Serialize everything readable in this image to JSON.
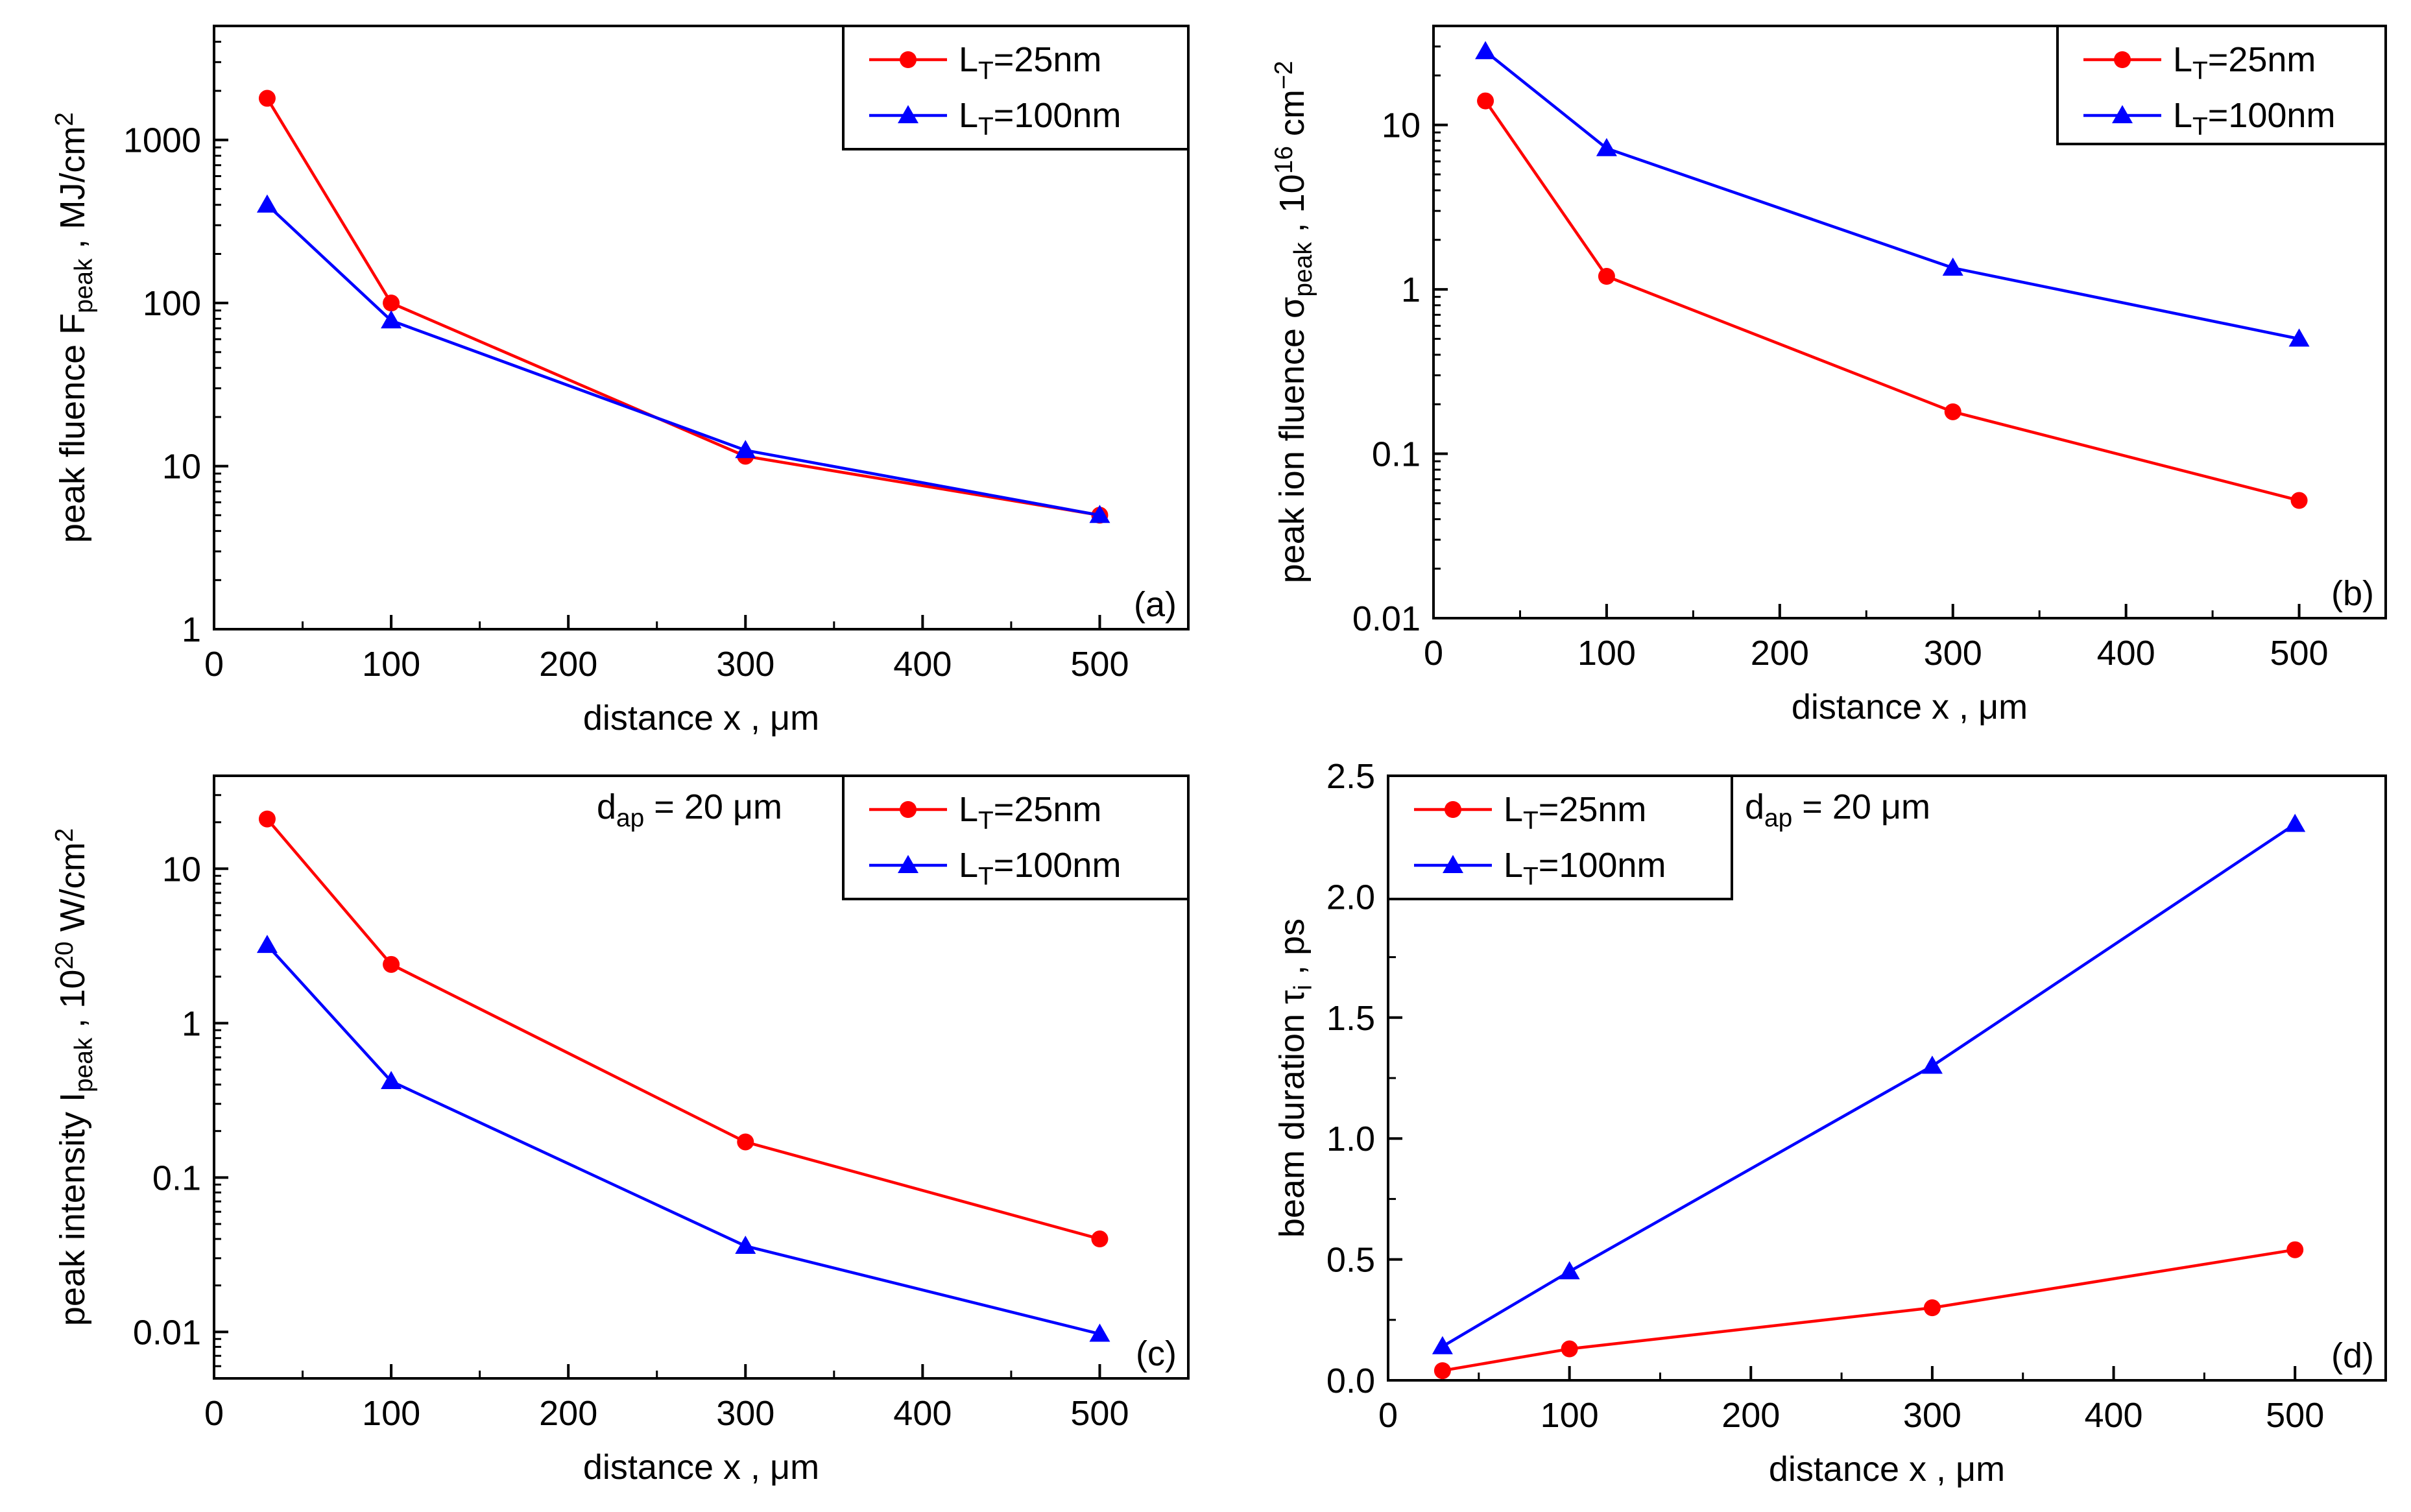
{
  "colors": {
    "red": "#ff0000",
    "blue": "#0000ff",
    "axis": "#000000"
  },
  "chart_data": [
    {
      "id": "a",
      "type": "line",
      "panel_label": "(a)",
      "yscale": "log",
      "xlim": [
        0,
        550
      ],
      "ylim": [
        1,
        5000
      ],
      "x_ticks": [
        0,
        100,
        200,
        300,
        400,
        500
      ],
      "x_tick_labels": [
        "0",
        "100",
        "200",
        "300",
        "400",
        "500"
      ],
      "y_ticks": [
        1,
        10,
        100,
        1000
      ],
      "y_tick_labels": [
        "1",
        "10",
        "100",
        "1000"
      ],
      "xlabel": "distance x , μm",
      "ylabel_parts": [
        "peak fluence F",
        "peak",
        " , MJ/cm",
        "2"
      ],
      "legend_position": "top-right",
      "note": null,
      "series": [
        {
          "name": "L_T=25nm",
          "legend_parts": [
            "L",
            "T",
            "=25nm"
          ],
          "color": "red",
          "marker": "circle",
          "x": [
            30,
            100,
            300,
            500
          ],
          "y": [
            1800,
            100,
            11.5,
            5.0
          ]
        },
        {
          "name": "L_T=100nm",
          "legend_parts": [
            "L",
            "T",
            "=100nm"
          ],
          "color": "blue",
          "marker": "triangle",
          "x": [
            30,
            100,
            300,
            500
          ],
          "y": [
            400,
            78,
            12.5,
            5.0
          ]
        }
      ]
    },
    {
      "id": "b",
      "type": "line",
      "panel_label": "(b)",
      "yscale": "log",
      "xlim": [
        0,
        550
      ],
      "ylim": [
        0.01,
        40
      ],
      "x_ticks": [
        0,
        100,
        200,
        300,
        400,
        500
      ],
      "x_tick_labels": [
        "0",
        "100",
        "200",
        "300",
        "400",
        "500"
      ],
      "y_ticks": [
        0.01,
        0.1,
        1,
        10
      ],
      "y_tick_labels": [
        "0.01",
        "0.1",
        "1",
        "10"
      ],
      "xlabel": "distance x , μm",
      "ylabel_parts": [
        "peak ion fluence σ",
        "peak",
        " , 10",
        "16",
        " cm",
        "−2"
      ],
      "legend_position": "top-right",
      "note": null,
      "series": [
        {
          "name": "L_T=25nm",
          "legend_parts": [
            "L",
            "T",
            "=25nm"
          ],
          "color": "red",
          "marker": "circle",
          "x": [
            30,
            100,
            300,
            500
          ],
          "y": [
            14,
            1.2,
            0.18,
            0.052
          ]
        },
        {
          "name": "L_T=100nm",
          "legend_parts": [
            "L",
            "T",
            "=100nm"
          ],
          "color": "blue",
          "marker": "triangle",
          "x": [
            30,
            100,
            300,
            500
          ],
          "y": [
            28,
            7.2,
            1.35,
            0.5
          ]
        }
      ]
    },
    {
      "id": "c",
      "type": "line",
      "panel_label": "(c)",
      "yscale": "log",
      "xlim": [
        0,
        550
      ],
      "ylim": [
        0.005,
        40
      ],
      "x_ticks": [
        0,
        100,
        200,
        300,
        400,
        500
      ],
      "x_tick_labels": [
        "0",
        "100",
        "200",
        "300",
        "400",
        "500"
      ],
      "y_ticks": [
        0.01,
        0.1,
        1,
        10
      ],
      "y_tick_labels": [
        "0.01",
        "0.1",
        "1",
        "10"
      ],
      "xlabel": "distance x , μm",
      "ylabel_parts": [
        "peak intensity I",
        "peak",
        " , 10",
        "20",
        " W/cm",
        "2"
      ],
      "legend_position": "top-right",
      "note": {
        "parts": [
          "d",
          "ap",
          " = 20 μm"
        ]
      },
      "series": [
        {
          "name": "L_T=25nm",
          "legend_parts": [
            "L",
            "T",
            "=25nm"
          ],
          "color": "red",
          "marker": "circle",
          "x": [
            30,
            100,
            300,
            500
          ],
          "y": [
            21,
            2.4,
            0.17,
            0.04
          ]
        },
        {
          "name": "L_T=100nm",
          "legend_parts": [
            "L",
            "T",
            "=100nm"
          ],
          "color": "blue",
          "marker": "triangle",
          "x": [
            30,
            100,
            300,
            500
          ],
          "y": [
            3.2,
            0.42,
            0.036,
            0.0097
          ]
        }
      ]
    },
    {
      "id": "d",
      "type": "line",
      "panel_label": "(d)",
      "yscale": "linear",
      "xlim": [
        0,
        550
      ],
      "ylim": [
        0,
        2.5
      ],
      "x_ticks": [
        0,
        100,
        200,
        300,
        400,
        500
      ],
      "x_tick_labels": [
        "0",
        "100",
        "200",
        "300",
        "400",
        "500"
      ],
      "y_ticks": [
        0,
        0.5,
        1.0,
        1.5,
        2.0,
        2.5
      ],
      "y_tick_labels": [
        "0.0",
        "0.5",
        "1.0",
        "1.5",
        "2.0",
        "2.5"
      ],
      "xlabel": "distance x , μm",
      "ylabel_parts": [
        "beam duration τ",
        "i",
        " , ps"
      ],
      "legend_position": "top-left",
      "note": {
        "parts": [
          "d",
          "ap",
          " = 20 μm"
        ]
      },
      "series": [
        {
          "name": "L_T=25nm",
          "legend_parts": [
            "L",
            "T",
            "=25nm"
          ],
          "color": "red",
          "marker": "circle",
          "x": [
            30,
            100,
            300,
            500
          ],
          "y": [
            0.04,
            0.13,
            0.3,
            0.54
          ]
        },
        {
          "name": "L_T=100nm",
          "legend_parts": [
            "L",
            "T",
            "=100nm"
          ],
          "color": "blue",
          "marker": "triangle",
          "x": [
            30,
            100,
            300,
            500
          ],
          "y": [
            0.14,
            0.45,
            1.3,
            2.3
          ]
        }
      ]
    }
  ]
}
